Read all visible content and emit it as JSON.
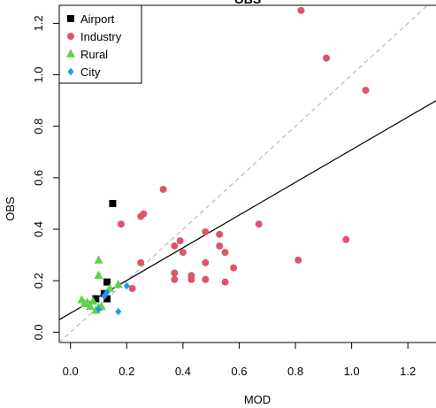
{
  "chart_data": {
    "type": "scatter",
    "title": "OBS",
    "xlabel": "MOD",
    "ylabel": "OBS",
    "xlim": [
      -0.04,
      1.3
    ],
    "ylim": [
      -0.04,
      1.27
    ],
    "xticks": [
      "0.0",
      "0.2",
      "0.4",
      "0.6",
      "0.8",
      "1.0",
      "1.2"
    ],
    "yticks": [
      "0.0",
      "0.2",
      "0.4",
      "0.6",
      "0.8",
      "1.0",
      "1.2"
    ],
    "grid": false,
    "legend_position": "top-left",
    "reference_lines": [
      {
        "type": "one-to-one",
        "style": "dashed",
        "color": "#b3b3b3",
        "intercept": 0.0,
        "slope": 1.0
      },
      {
        "type": "regression",
        "style": "solid",
        "color": "#000000",
        "intercept": 0.074,
        "slope": 0.635
      }
    ],
    "series": [
      {
        "name": "Airport",
        "marker": "square",
        "color": "#000000",
        "points": [
          [
            0.15,
            0.5
          ],
          [
            0.13,
            0.195
          ],
          [
            0.09,
            0.13
          ],
          [
            0.12,
            0.15
          ],
          [
            0.13,
            0.13
          ]
        ]
      },
      {
        "name": "Industry",
        "marker": "circle",
        "color": "#DF536B",
        "points": [
          [
            0.82,
            1.25
          ],
          [
            0.91,
            1.065
          ],
          [
            1.05,
            0.94
          ],
          [
            0.33,
            0.555
          ],
          [
            0.26,
            0.46
          ],
          [
            0.25,
            0.45
          ],
          [
            0.18,
            0.42
          ],
          [
            0.67,
            0.42
          ],
          [
            0.48,
            0.39
          ],
          [
            0.53,
            0.38
          ],
          [
            0.98,
            0.36
          ],
          [
            0.39,
            0.355
          ],
          [
            0.37,
            0.335
          ],
          [
            0.53,
            0.335
          ],
          [
            0.4,
            0.31
          ],
          [
            0.55,
            0.31
          ],
          [
            0.81,
            0.28
          ],
          [
            0.48,
            0.27
          ],
          [
            0.25,
            0.27
          ],
          [
            0.58,
            0.25
          ],
          [
            0.37,
            0.23
          ],
          [
            0.43,
            0.22
          ],
          [
            0.37,
            0.205
          ],
          [
            0.43,
            0.205
          ],
          [
            0.48,
            0.205
          ],
          [
            0.55,
            0.195
          ],
          [
            0.22,
            0.17
          ]
        ]
      },
      {
        "name": "Rural",
        "marker": "triangle",
        "color": "#61D04F",
        "points": [
          [
            0.1,
            0.28
          ],
          [
            0.1,
            0.22
          ],
          [
            0.14,
            0.17
          ],
          [
            0.17,
            0.185
          ],
          [
            0.04,
            0.125
          ],
          [
            0.05,
            0.11
          ],
          [
            0.06,
            0.115
          ],
          [
            0.07,
            0.1
          ],
          [
            0.08,
            0.12
          ],
          [
            0.09,
            0.085
          ],
          [
            0.1,
            0.095
          ],
          [
            0.11,
            0.1
          ]
        ]
      },
      {
        "name": "City",
        "marker": "diamond",
        "color": "#2297E6",
        "points": [
          [
            0.2,
            0.18
          ],
          [
            0.17,
            0.08
          ],
          [
            0.1,
            0.09
          ],
          [
            0.12,
            0.14
          ],
          [
            0.13,
            0.155
          ]
        ]
      }
    ]
  }
}
